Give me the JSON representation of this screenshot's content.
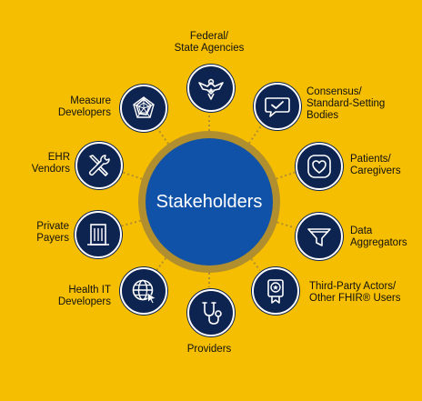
{
  "hub": {
    "label": "Stakeholders"
  },
  "colors": {
    "background": "#F6BE00",
    "hub": "#0F52A8",
    "hub_ring": "#B18E2E",
    "node": "#0D2350",
    "connector": "#B18E2E"
  },
  "stakeholders": [
    {
      "icon": "eagle-icon",
      "lines": [
        "Federal/",
        "State Agencies"
      ]
    },
    {
      "icon": "speech-bubble-check-icon",
      "lines": [
        "Consensus/",
        "Standard-Setting",
        "Bodies"
      ]
    },
    {
      "icon": "heart-icon",
      "lines": [
        "Patients/",
        "Caregivers"
      ]
    },
    {
      "icon": "funnel-icon",
      "lines": [
        "Data",
        "Aggregators"
      ]
    },
    {
      "icon": "award-ribbon-icon",
      "lines": [
        "Third-Party Actors/",
        "Other FHIR® Users"
      ]
    },
    {
      "icon": "stethoscope-icon",
      "lines": [
        "Providers"
      ]
    },
    {
      "icon": "globe-cursor-icon",
      "lines": [
        "Health IT",
        "Developers"
      ]
    },
    {
      "icon": "building-icon",
      "lines": [
        "Private",
        "Payers"
      ]
    },
    {
      "icon": "wrench-screwdriver-icon",
      "lines": [
        "EHR",
        "Vendors"
      ]
    },
    {
      "icon": "radar-chart-icon",
      "lines": [
        "Measure",
        "Developers"
      ]
    }
  ]
}
